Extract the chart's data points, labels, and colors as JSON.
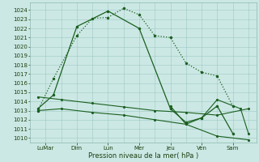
{
  "background_color": "#cce8e4",
  "grid_color": "#9ec8c4",
  "line_color": "#1a6020",
  "xlabel": "Pression niveau de la mer( hPa )",
  "x_tick_positions": [
    1,
    3,
    5,
    7,
    9,
    11,
    13
  ],
  "x_tick_labels": [
    "LuMar",
    "Dim",
    "Lun",
    "Mer",
    "Jeu",
    "Ven",
    "Sam"
  ],
  "ylim": [
    1009.5,
    1024.8
  ],
  "yticks": [
    1010,
    1011,
    1012,
    1013,
    1014,
    1015,
    1016,
    1017,
    1018,
    1019,
    1020,
    1021,
    1022,
    1023,
    1024
  ],
  "series1_dotted": {
    "x": [
      0.5,
      1.5,
      3.0,
      4.0,
      5.0,
      6.0,
      7.0,
      8.0,
      9.0,
      10.0,
      11.0,
      12.0,
      13.0
    ],
    "y": [
      1013.0,
      1016.5,
      1021.2,
      1023.1,
      1023.2,
      1024.2,
      1023.5,
      1021.2,
      1021.0,
      1018.2,
      1017.2,
      1016.8,
      1013.5
    ]
  },
  "series2_solid_high": {
    "x": [
      0.5,
      1.5,
      3.0,
      5.0,
      7.0,
      9.0,
      10.0,
      11.0,
      12.0,
      13.0
    ],
    "y": [
      1013.2,
      1014.7,
      1022.2,
      1023.9,
      1022.0,
      1013.2,
      1011.7,
      1012.2,
      1013.5,
      1010.5
    ]
  },
  "series3_flat_upper": {
    "x": [
      0.5,
      2.0,
      4.0,
      6.0,
      8.0,
      10.0,
      12.0,
      14.0
    ],
    "y": [
      1014.5,
      1014.2,
      1013.8,
      1013.4,
      1013.0,
      1012.8,
      1012.5,
      1013.2
    ]
  },
  "series4_flat_lower": {
    "x": [
      0.5,
      2.0,
      4.0,
      6.0,
      8.0,
      10.0,
      12.0,
      14.0
    ],
    "y": [
      1013.0,
      1013.2,
      1012.8,
      1012.5,
      1012.0,
      1011.5,
      1010.2,
      1009.8
    ]
  },
  "series5_right": {
    "x": [
      9.0,
      10.0,
      11.0,
      12.0,
      13.5,
      14.0
    ],
    "y": [
      1013.5,
      1011.5,
      1012.2,
      1014.2,
      1013.2,
      1010.5
    ]
  }
}
